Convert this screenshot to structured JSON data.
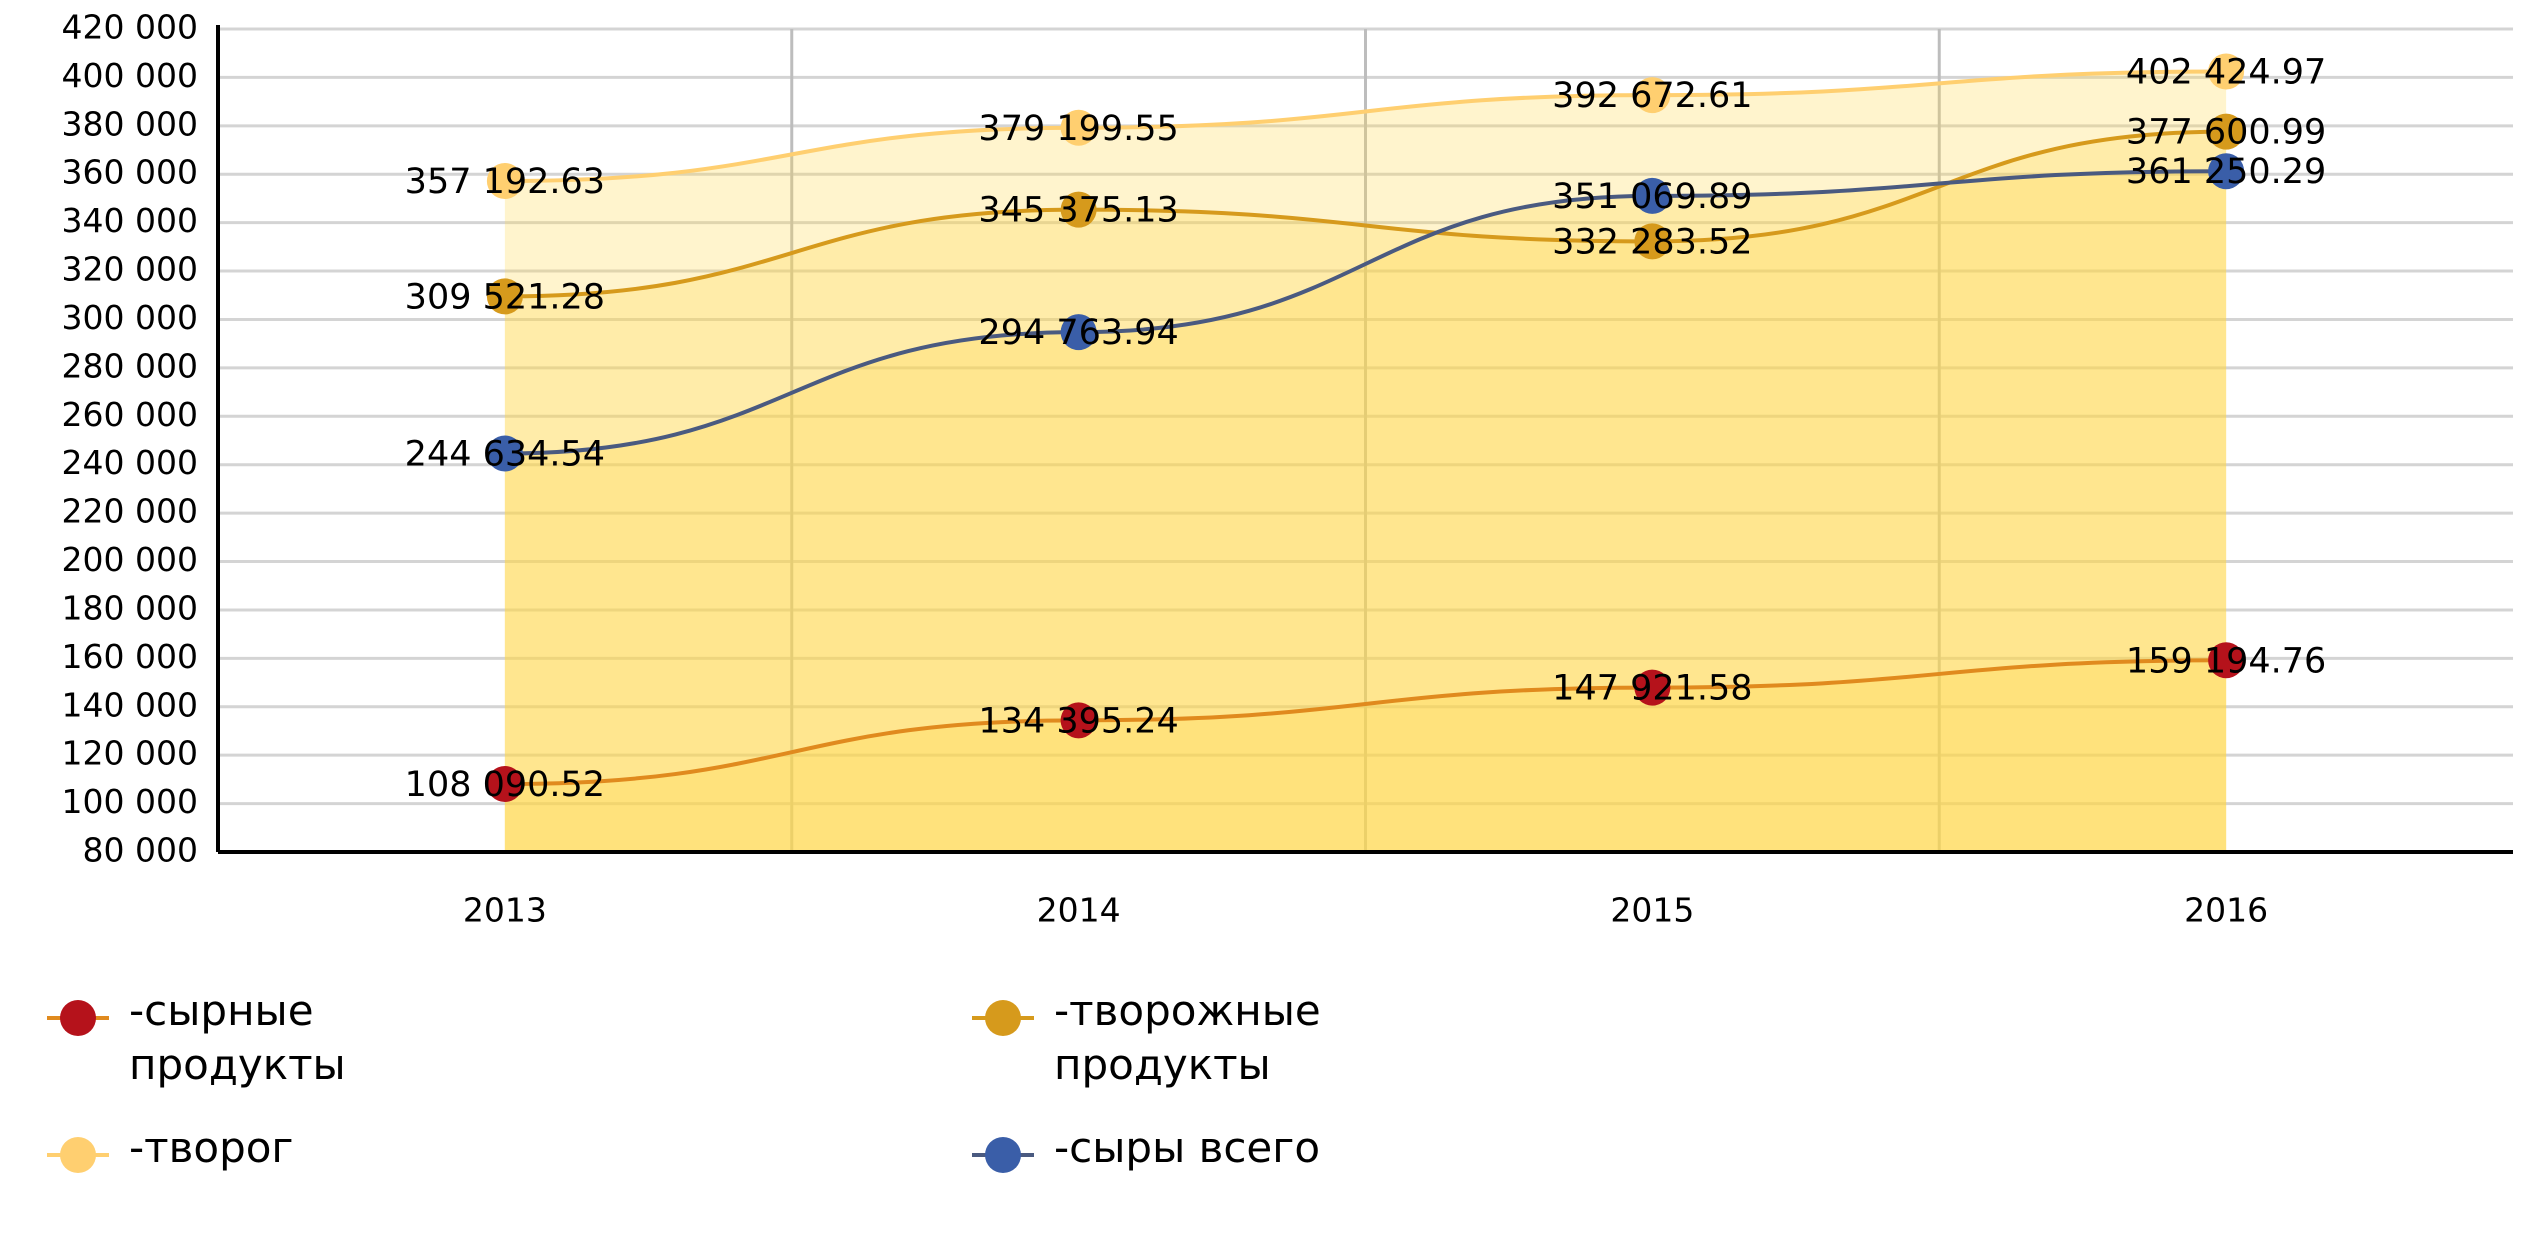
{
  "chart_data": {
    "type": "line",
    "categories": [
      "2013",
      "2014",
      "2015",
      "2016"
    ],
    "series": [
      {
        "name": "-сырные продукты",
        "color": "#b5121b",
        "line_color": "#e08a1e",
        "values": [
          108090.52,
          134395.24,
          147921.58,
          159194.76
        ],
        "value_labels": [
          "108 090.52",
          "134 395.24",
          "147 921.58",
          "159 194.76"
        ]
      },
      {
        "name": "-творожные продукты",
        "color": "#d69a1c",
        "line_color": "#d69a1c",
        "values": [
          309521.28,
          345375.13,
          332283.52,
          377600.99
        ],
        "value_labels": [
          "309 521.28",
          "345 375.13",
          "332 283.52",
          "377 600.99"
        ]
      },
      {
        "name": "-творог",
        "color": "#ffcf70",
        "line_color": "#ffcf70",
        "values": [
          357192.63,
          379199.55,
          392672.61,
          402424.97
        ],
        "value_labels": [
          "357 192.63",
          "379 199.55",
          "392 672.61",
          "402 424.97"
        ]
      },
      {
        "name": "-сыры всего",
        "color": "#3a5ea8",
        "line_color": "#4a5a80",
        "values": [
          244634.54,
          294763.94,
          351069.89,
          361250.29
        ],
        "value_labels": [
          "244 634.54",
          "294 763.94",
          "351 069.89",
          "361 250.29"
        ]
      }
    ],
    "area_fill": "#ffd84a",
    "ylim": [
      80000,
      420000
    ],
    "yticks": [
      {
        "value": 80000,
        "label": "80 000"
      },
      {
        "value": 100000,
        "label": "100 000"
      },
      {
        "value": 120000,
        "label": "120 000"
      },
      {
        "value": 140000,
        "label": "140 000"
      },
      {
        "value": 160000,
        "label": "160 000"
      },
      {
        "value": 180000,
        "label": "180 000"
      },
      {
        "value": 200000,
        "label": "200 000"
      },
      {
        "value": 220000,
        "label": "220 000"
      },
      {
        "value": 240000,
        "label": "240 000"
      },
      {
        "value": 260000,
        "label": "260 000"
      },
      {
        "value": 280000,
        "label": "280 000"
      },
      {
        "value": 300000,
        "label": "300 000"
      },
      {
        "value": 320000,
        "label": "320 000"
      },
      {
        "value": 340000,
        "label": "340 000"
      },
      {
        "value": 360000,
        "label": "360 000"
      },
      {
        "value": 380000,
        "label": "380 000"
      },
      {
        "value": 400000,
        "label": "400 000"
      },
      {
        "value": 420000,
        "label": "420 000"
      }
    ],
    "grid": true
  }
}
